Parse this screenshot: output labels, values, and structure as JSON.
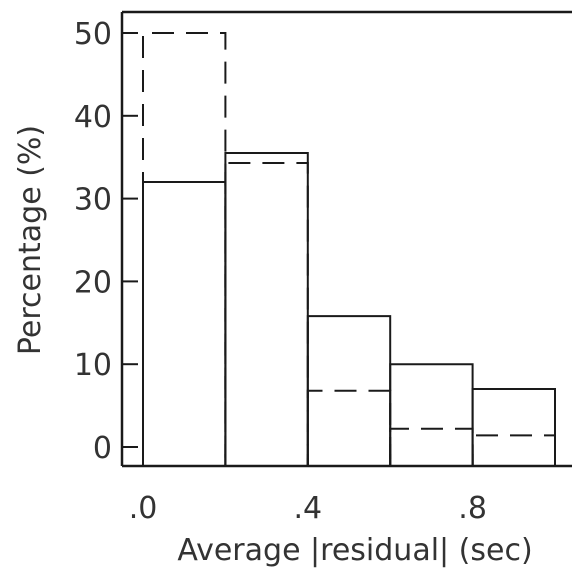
{
  "chart_data": {
    "type": "bar",
    "xlabel": "Average |residual| (sec)",
    "ylabel": "Percentage (%)",
    "xlim": [
      0,
      1
    ],
    "ylim": [
      -2,
      52
    ],
    "bin_width": 0.2,
    "x_ticks": [
      {
        "value": 0.0,
        "label": ".0"
      },
      {
        "value": 0.4,
        "label": ".4"
      },
      {
        "value": 0.8,
        "label": ".8"
      }
    ],
    "y_ticks": [
      {
        "value": 0,
        "label": "0"
      },
      {
        "value": 10,
        "label": "10"
      },
      {
        "value": 20,
        "label": "20"
      },
      {
        "value": 30,
        "label": "30"
      },
      {
        "value": 40,
        "label": "40"
      },
      {
        "value": 50,
        "label": "50"
      }
    ],
    "categories": [
      "0.0-0.2",
      "0.2-0.4",
      "0.4-0.6",
      "0.6-0.8",
      "0.8-1.0"
    ],
    "series": [
      {
        "style": "solid",
        "values": [
          32.0,
          35.5,
          15.8,
          10.0,
          7.0
        ]
      },
      {
        "style": "dashed",
        "values": [
          50.0,
          34.3,
          6.8,
          2.2,
          1.4
        ]
      }
    ],
    "grid": false,
    "colors": {
      "line": "#1a1a1a",
      "text": "#333333"
    }
  }
}
